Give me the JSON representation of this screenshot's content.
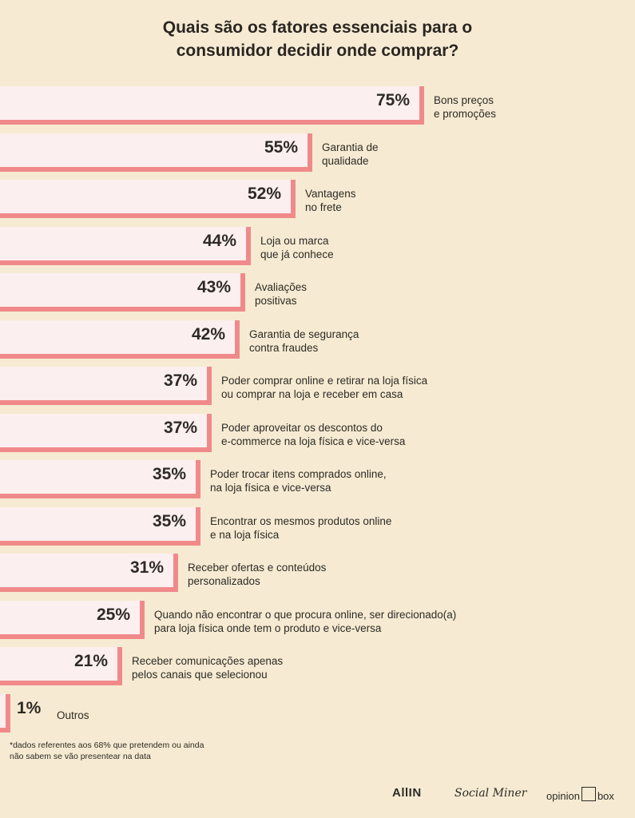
{
  "title_line1": "Quais são os fatores essenciais para o",
  "title_line2": "consumidor decidir onde comprar?",
  "chart_data": {
    "type": "bar",
    "orientation": "horizontal",
    "categories": [
      [
        "Bons preços",
        "e promoções"
      ],
      [
        "Garantia de",
        "qualidade"
      ],
      [
        "Vantagens",
        "no frete"
      ],
      [
        "Loja ou marca",
        "que já conhece"
      ],
      [
        "Avaliações",
        "positivas"
      ],
      [
        "Garantia de segurança",
        "contra fraudes"
      ],
      [
        "Poder comprar online e retirar na loja física",
        "ou comprar na loja e receber em casa"
      ],
      [
        "Poder aproveitar os descontos do",
        "e-commerce na loja física e vice-versa"
      ],
      [
        "Poder trocar itens comprados online,",
        "na loja física e vice-versa"
      ],
      [
        "Encontrar os mesmos produtos online",
        "e na loja física"
      ],
      [
        "Receber ofertas e conteúdos",
        "personalizados"
      ],
      [
        "Quando não encontrar o que procura online, ser direcionado(a)",
        "para loja física onde tem o produto e vice-versa"
      ],
      [
        "Receber comunicações apenas",
        "pelos canais que selecionou"
      ],
      [
        "Outros"
      ]
    ],
    "values": [
      75,
      55,
      52,
      44,
      43,
      42,
      37,
      37,
      35,
      35,
      31,
      25,
      21,
      1
    ],
    "value_labels": [
      "75%",
      "55%",
      "52%",
      "44%",
      "43%",
      "42%",
      "37%",
      "37%",
      "35%",
      "35%",
      "31%",
      "25%",
      "21%",
      "1%"
    ],
    "bar_fill": "#fbefef",
    "bar_edge": "#f08a8a",
    "background": "#f6ebd2"
  },
  "footnote_line1": "*dados referentes aos 68% que pretendem ou ainda",
  "footnote_line2": "não sabem se vão presentear na data",
  "logos": {
    "allin": "AllIN",
    "social_miner": "Social Miner",
    "opinion_box_left": "opinion",
    "opinion_box_right": "box"
  }
}
